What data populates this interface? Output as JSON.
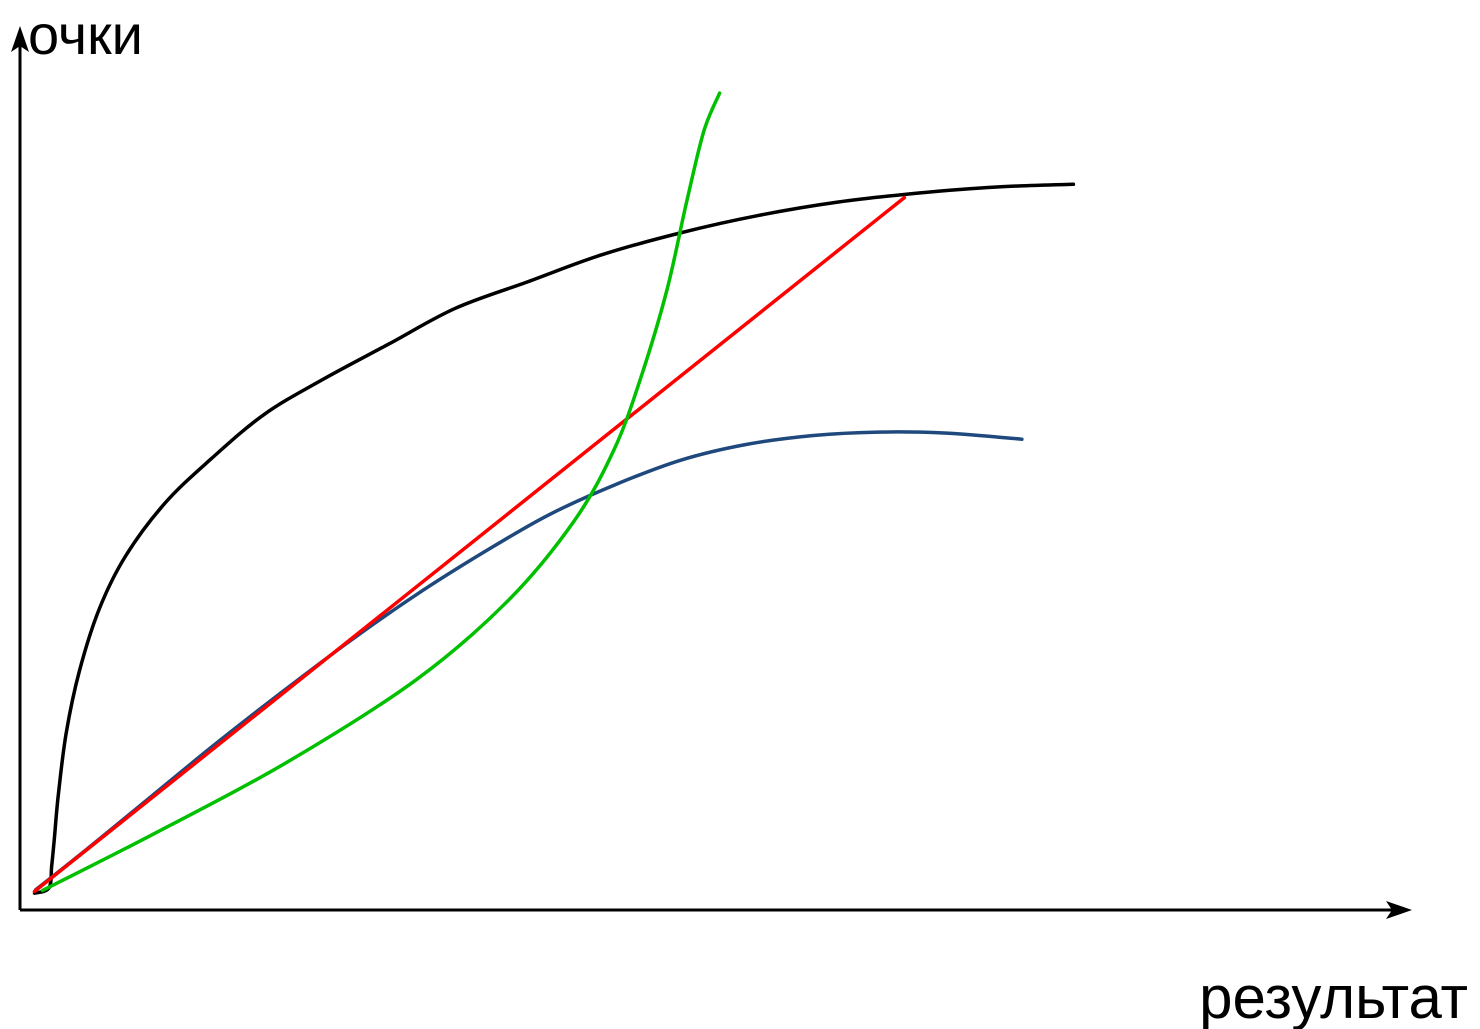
{
  "chart_data": {
    "type": "line",
    "title": "",
    "ylabel": "очки",
    "xlabel": "результат",
    "xlim": [
      0,
      100
    ],
    "ylim": [
      0,
      100
    ],
    "grid": false,
    "legend": "none",
    "axis_color": "#000000",
    "series": [
      {
        "color": "#000000",
        "points": [
          [
            1.1,
            1.9
          ],
          [
            2.2,
            2.5
          ],
          [
            2.4,
            5
          ],
          [
            2.6,
            8
          ],
          [
            2.9,
            13
          ],
          [
            3.5,
            20
          ],
          [
            4.5,
            27
          ],
          [
            6,
            34
          ],
          [
            8,
            40
          ],
          [
            11,
            46
          ],
          [
            14.5,
            51
          ],
          [
            18.5,
            56
          ],
          [
            23,
            60
          ],
          [
            28,
            64
          ],
          [
            33,
            68
          ],
          [
            38.5,
            71
          ],
          [
            44,
            74
          ],
          [
            50,
            76.5
          ],
          [
            56,
            78.5
          ],
          [
            62,
            80
          ],
          [
            68,
            81
          ],
          [
            74,
            81.7
          ],
          [
            79.8,
            82
          ]
        ]
      },
      {
        "color": "#1f497d",
        "points": [
          [
            1.2,
            2.3
          ],
          [
            5,
            6.8
          ],
          [
            10,
            12.9
          ],
          [
            15,
            19
          ],
          [
            20,
            24.8
          ],
          [
            25,
            30.4
          ],
          [
            30,
            35.6
          ],
          [
            35,
            40.3
          ],
          [
            40,
            44.6
          ],
          [
            45,
            48
          ],
          [
            50,
            50.8
          ],
          [
            55,
            52.6
          ],
          [
            60,
            53.6
          ],
          [
            65,
            54
          ],
          [
            70,
            53.9
          ],
          [
            75.9,
            53.2
          ]
        ]
      },
      {
        "color": "#ff0000",
        "points": [
          [
            1.1,
            2.1
          ],
          [
            67,
            80.5
          ]
        ]
      },
      {
        "color": "#00c000",
        "points": [
          [
            1.7,
            2.2
          ],
          [
            10,
            8.5
          ],
          [
            20,
            16.5
          ],
          [
            30,
            26
          ],
          [
            37,
            35
          ],
          [
            42,
            44
          ],
          [
            45,
            52
          ],
          [
            47,
            60
          ],
          [
            49,
            70
          ],
          [
            50.5,
            80
          ],
          [
            51.8,
            88
          ],
          [
            53,
            92.3
          ]
        ]
      }
    ]
  }
}
